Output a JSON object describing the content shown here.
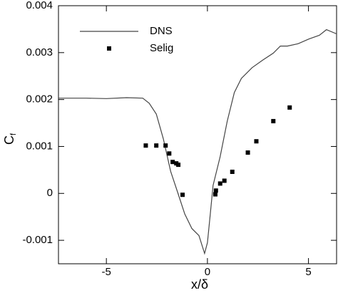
{
  "chart_data": {
    "type": "line",
    "xlabel": "x/δ",
    "ylabel": "C",
    "ylabel_sub": "f",
    "xlim": [
      -7.37,
      6.39
    ],
    "ylim": [
      -0.0015,
      0.004
    ],
    "xticks": [
      -5,
      0,
      5
    ],
    "yticks": [
      -0.001,
      0,
      0.001,
      0.002,
      0.003,
      0.004
    ],
    "legend": "upper left",
    "series": [
      {
        "name": "DNS",
        "style": "line",
        "color": "#444444",
        "x": [
          -7.37,
          -6,
          -5,
          -4,
          -3.2,
          -2.88,
          -2.53,
          -2.18,
          -1.82,
          -1.47,
          -1.12,
          -0.77,
          -0.42,
          -0.14,
          0,
          0.14,
          0.28,
          0.63,
          0.98,
          1.33,
          1.68,
          2.21,
          2.74,
          3.26,
          3.61,
          3.96,
          4.49,
          5.02,
          5.54,
          5.89,
          6.39
        ],
        "values": [
          0.00203,
          0.00203,
          0.00202,
          0.00204,
          0.00203,
          0.00192,
          0.00169,
          0.00116,
          0.00047,
          2e-05,
          -0.00044,
          -0.00075,
          -0.0009,
          -0.00128,
          -0.00105,
          -0.00044,
          0.00017,
          0.00078,
          0.00154,
          0.00215,
          0.00245,
          0.00268,
          0.00284,
          0.00299,
          0.00314,
          0.00314,
          0.00319,
          0.00329,
          0.00337,
          0.00349,
          0.0034
        ]
      },
      {
        "name": "Selig",
        "style": "marker",
        "color": "#000000",
        "x": [
          -3.05,
          -2.53,
          -2.07,
          -1.89,
          -1.72,
          -1.54,
          -1.44,
          -1.23,
          0.39,
          0.42,
          0.63,
          0.84,
          1.23,
          2.0,
          2.42,
          3.26,
          4.07
        ],
        "values": [
          0.00102,
          0.00102,
          0.00102,
          0.00085,
          0.00067,
          0.00064,
          0.00061,
          -3e-05,
          -2e-05,
          6e-05,
          0.00021,
          0.00027,
          0.00046,
          0.00087,
          0.00111,
          0.00154,
          0.00183
        ]
      }
    ]
  }
}
